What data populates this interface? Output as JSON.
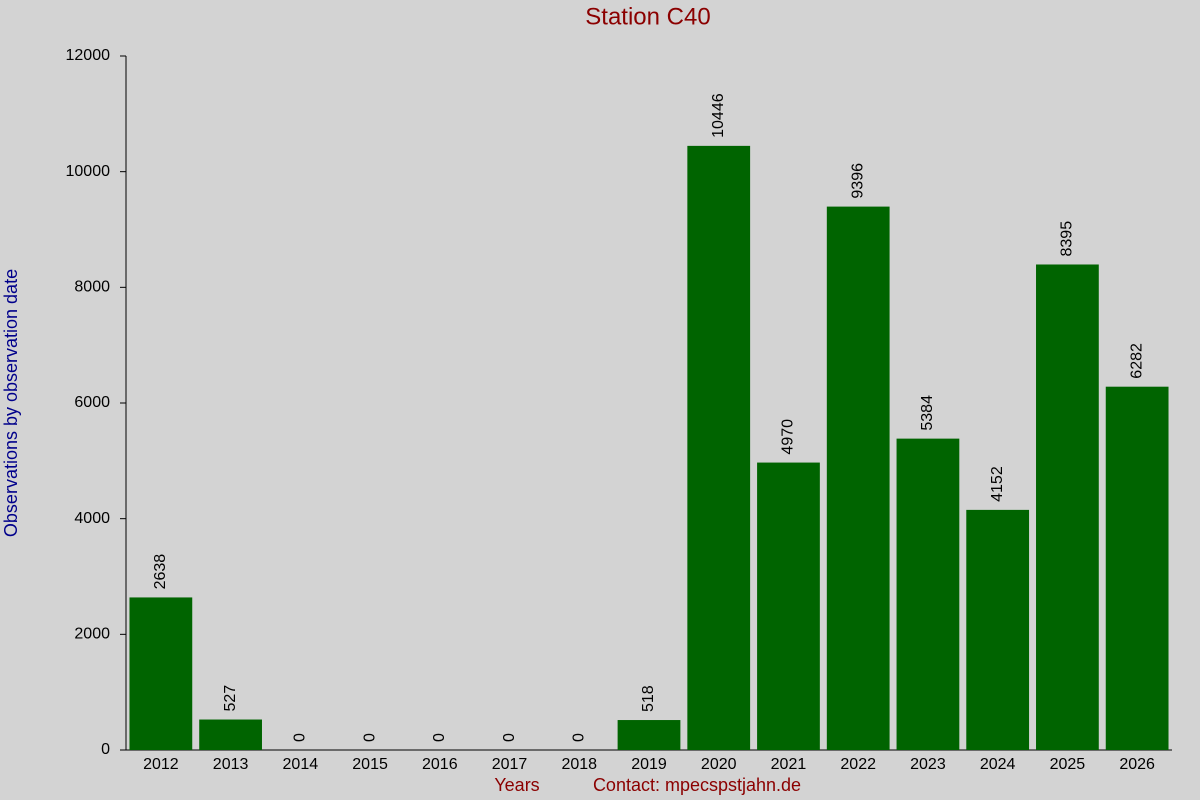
{
  "chart_data": {
    "type": "bar",
    "title": "Station C40",
    "xlabel": "Years",
    "ylabel": "Observations by observation date",
    "contact": "Contact: mpecspstjahn.de",
    "categories": [
      "2012",
      "2013",
      "2014",
      "2015",
      "2016",
      "2017",
      "2018",
      "2019",
      "2020",
      "2021",
      "2022",
      "2023",
      "2024",
      "2025",
      "2026"
    ],
    "values": [
      2638,
      527,
      0,
      0,
      0,
      0,
      0,
      518,
      10446,
      4970,
      9396,
      5384,
      4152,
      8395,
      6282
    ],
    "color": "#006400",
    "ylim": [
      0,
      12000
    ],
    "yticks": [
      0,
      2000,
      4000,
      6000,
      8000,
      10000,
      12000
    ],
    "grid": false
  }
}
